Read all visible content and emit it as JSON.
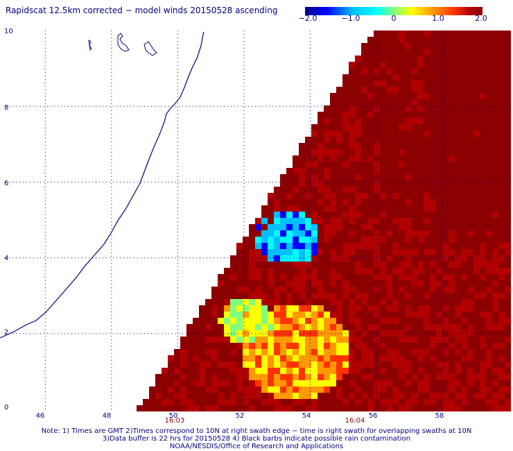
{
  "title": "Rapidscat 12.5km corrected − model winds 20150528 ascending",
  "colorbar": {
    "ticks": [
      "−2.0",
      "−1.0",
      "0",
      "1.0",
      "2.0"
    ],
    "min": -2.0,
    "max": 2.0,
    "colors": [
      "#00008b",
      "#0000ff",
      "#00bfff",
      "#00ffff",
      "#7fff7f",
      "#ffff00",
      "#ff9900",
      "#ff3300",
      "#b00000",
      "#8b0000"
    ]
  },
  "axes": {
    "x_labels": [
      "46",
      "48",
      "50",
      "52",
      "54",
      "56",
      "58"
    ],
    "y_labels": [
      "0",
      "2",
      "4",
      "6",
      "8",
      "10"
    ],
    "x_range": [
      44.8,
      60
    ],
    "y_range": [
      0,
      10
    ]
  },
  "times": [
    "16:03",
    "16:04"
  ],
  "notes": [
    "Note: 1) Times are GMT 2)Times correspond to 10N at right swath edge − time is right swath for overlapping swaths at 10N",
    "3)Data buffer is 22 hrs for 20150528 4) Black barbs indicate possible rain contamination",
    "NOAA/NESDIS/Office of Research and Applications"
  ],
  "colors": {
    "text": "#000080",
    "coast": "#000080",
    "time_label": "#8b0000",
    "background": "#ffffff"
  }
}
